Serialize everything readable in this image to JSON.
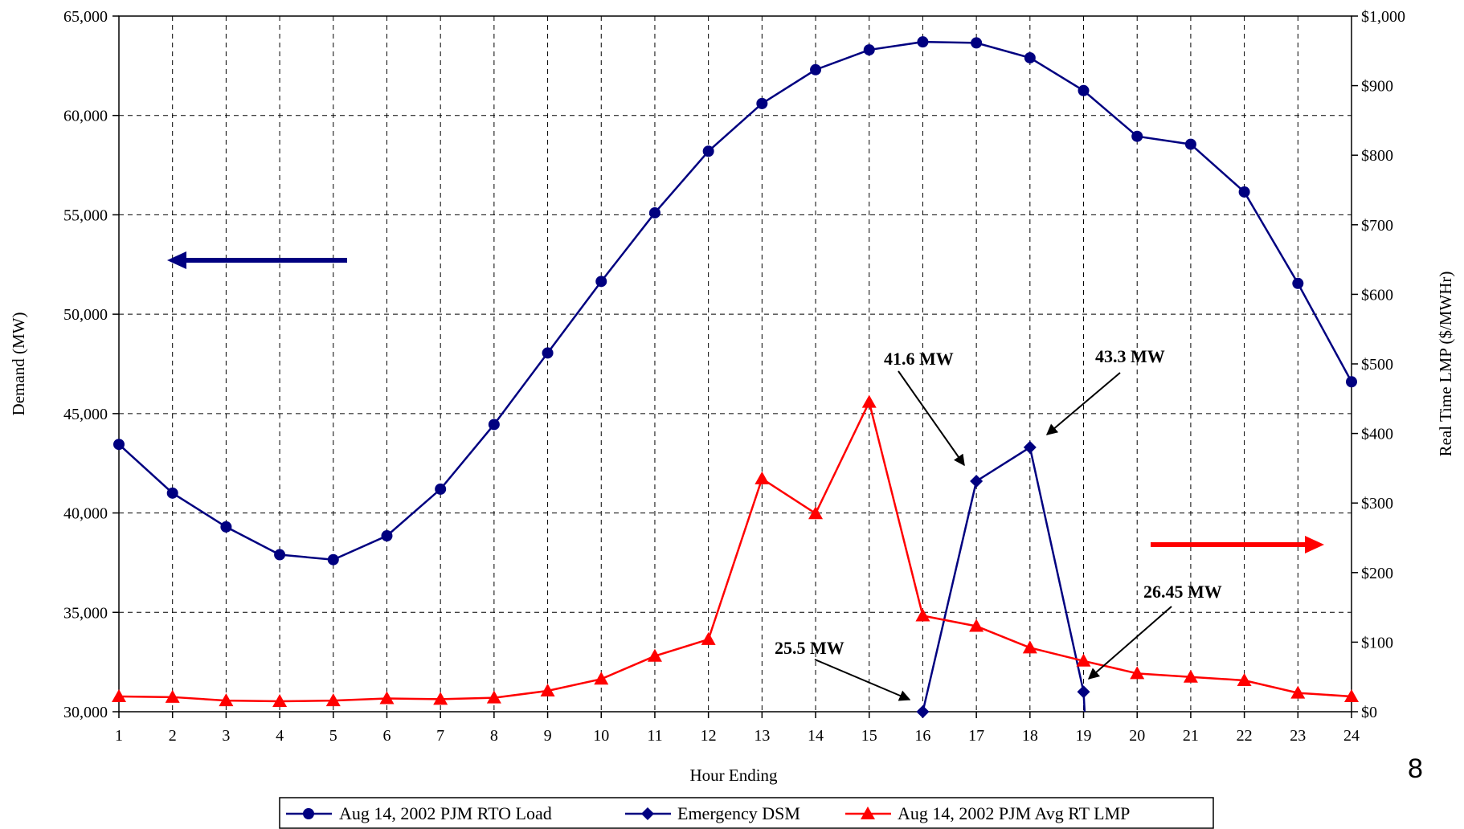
{
  "page_number": "8",
  "chart_data": {
    "type": "line",
    "xlabel": "Hour Ending",
    "ylabel": "Demand (MW)",
    "y2label": "Real Time LMP ($/MWHr)",
    "x": [
      1,
      2,
      3,
      4,
      5,
      6,
      7,
      8,
      9,
      10,
      11,
      12,
      13,
      14,
      15,
      16,
      17,
      18,
      19,
      20,
      21,
      22,
      23,
      24
    ],
    "xlim": [
      1,
      24
    ],
    "ylim": [
      30000,
      65000
    ],
    "y2lim": [
      0,
      1000
    ],
    "yticks": [
      30000,
      35000,
      40000,
      45000,
      50000,
      55000,
      60000,
      65000
    ],
    "ytick_labels": [
      "30,000",
      "35,000",
      "40,000",
      "45,000",
      "50,000",
      "55,000",
      "60,000",
      "65,000"
    ],
    "y2ticks": [
      0,
      100,
      200,
      300,
      400,
      500,
      600,
      700,
      800,
      900,
      1000
    ],
    "y2tick_labels": [
      "$0",
      "$100",
      "$200",
      "$300",
      "$400",
      "$500",
      "$600",
      "$700",
      "$800",
      "$900",
      "$1,000"
    ],
    "grid": true,
    "legend_position": "bottom",
    "colors": {
      "load": "#000080",
      "dsm": "#000080",
      "lmp": "#ff0000"
    },
    "series": [
      {
        "name": "Aug 14, 2002 PJM RTO Load",
        "axis": "left",
        "marker": "circle",
        "values": [
          43450,
          41000,
          39300,
          37900,
          37650,
          38850,
          41200,
          44450,
          48050,
          51650,
          55100,
          58200,
          60600,
          62300,
          63300,
          63700,
          63650,
          62900,
          61250,
          58950,
          58550,
          56150,
          51550,
          46600
        ]
      },
      {
        "name": "Emergency DSM",
        "axis": "left",
        "marker": "diamond",
        "x": [
          16,
          17,
          18,
          19,
          19.02
        ],
        "values": [
          30000,
          41600,
          43300,
          31000,
          30000
        ]
      },
      {
        "name": "Aug 14, 2002 PJM Avg RT LMP",
        "axis": "right",
        "marker": "triangle",
        "values": [
          22,
          21,
          16,
          15,
          16,
          19,
          18,
          20,
          30,
          47,
          80,
          104,
          335,
          285,
          445,
          138,
          123,
          92,
          73,
          55,
          50,
          45,
          27,
          22
        ]
      }
    ],
    "annotations": [
      {
        "text": "41.6 MW"
      },
      {
        "text": "43.3 MW"
      },
      {
        "text": "25.5 MW"
      },
      {
        "text": "26.45 MW"
      }
    ]
  }
}
